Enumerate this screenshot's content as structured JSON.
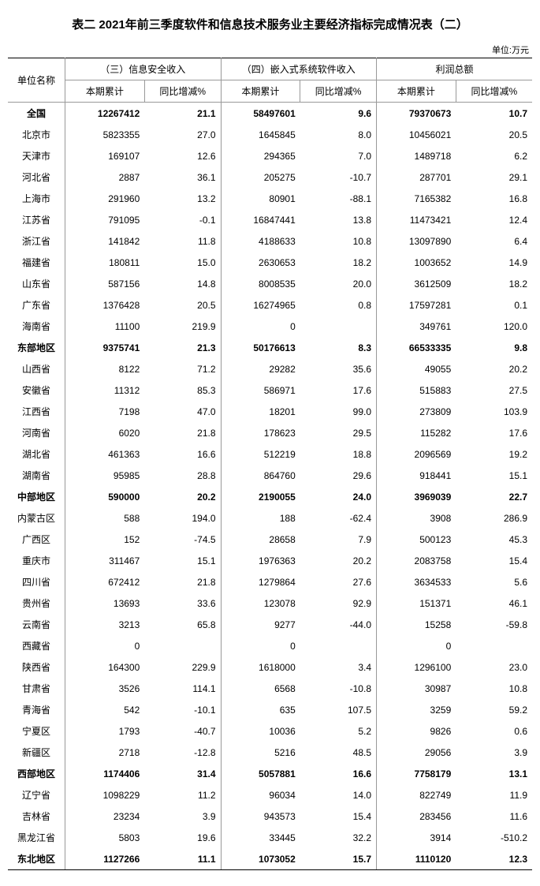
{
  "title": "表二 2021年前三季度软件和信息技术服务业主要经济指标完成情况表（二）",
  "unit_label": "单位:万元",
  "header": {
    "unit_name": "单位名称",
    "groups": [
      "（三）信息安全收入",
      "（四）嵌入式系统软件收入",
      "利润总额"
    ],
    "sub": [
      "本期累计",
      "同比增减%",
      "本期累计",
      "同比增减%",
      "本期累计",
      "同比增减%"
    ]
  },
  "rows": [
    {
      "name": "全国",
      "bold": true,
      "v": [
        "12267412",
        "21.1",
        "58497601",
        "9.6",
        "79370673",
        "10.7"
      ]
    },
    {
      "name": "北京市",
      "v": [
        "5823355",
        "27.0",
        "1645845",
        "8.0",
        "10456021",
        "20.5"
      ]
    },
    {
      "name": "天津市",
      "v": [
        "169107",
        "12.6",
        "294365",
        "7.0",
        "1489718",
        "6.2"
      ]
    },
    {
      "name": "河北省",
      "v": [
        "2887",
        "36.1",
        "205275",
        "-10.7",
        "287701",
        "29.1"
      ]
    },
    {
      "name": "上海市",
      "v": [
        "291960",
        "13.2",
        "80901",
        "-88.1",
        "7165382",
        "16.8"
      ]
    },
    {
      "name": "江苏省",
      "v": [
        "791095",
        "-0.1",
        "16847441",
        "13.8",
        "11473421",
        "12.4"
      ]
    },
    {
      "name": "浙江省",
      "v": [
        "141842",
        "11.8",
        "4188633",
        "10.8",
        "13097890",
        "6.4"
      ]
    },
    {
      "name": "福建省",
      "v": [
        "180811",
        "15.0",
        "2630653",
        "18.2",
        "1003652",
        "14.9"
      ]
    },
    {
      "name": "山东省",
      "v": [
        "587156",
        "14.8",
        "8008535",
        "20.0",
        "3612509",
        "18.2"
      ]
    },
    {
      "name": "广东省",
      "v": [
        "1376428",
        "20.5",
        "16274965",
        "0.8",
        "17597281",
        "0.1"
      ]
    },
    {
      "name": "海南省",
      "v": [
        "11100",
        "219.9",
        "0",
        "",
        "349761",
        "120.0"
      ]
    },
    {
      "name": "东部地区",
      "bold": true,
      "v": [
        "9375741",
        "21.3",
        "50176613",
        "8.3",
        "66533335",
        "9.8"
      ]
    },
    {
      "name": "山西省",
      "v": [
        "8122",
        "71.2",
        "29282",
        "35.6",
        "49055",
        "20.2"
      ]
    },
    {
      "name": "安徽省",
      "v": [
        "11312",
        "85.3",
        "586971",
        "17.6",
        "515883",
        "27.5"
      ]
    },
    {
      "name": "江西省",
      "v": [
        "7198",
        "47.0",
        "18201",
        "99.0",
        "273809",
        "103.9"
      ]
    },
    {
      "name": "河南省",
      "v": [
        "6020",
        "21.8",
        "178623",
        "29.5",
        "115282",
        "17.6"
      ]
    },
    {
      "name": "湖北省",
      "v": [
        "461363",
        "16.6",
        "512219",
        "18.8",
        "2096569",
        "19.2"
      ]
    },
    {
      "name": "湖南省",
      "v": [
        "95985",
        "28.8",
        "864760",
        "29.6",
        "918441",
        "15.1"
      ]
    },
    {
      "name": "中部地区",
      "bold": true,
      "v": [
        "590000",
        "20.2",
        "2190055",
        "24.0",
        "3969039",
        "22.7"
      ]
    },
    {
      "name": "内蒙古区",
      "v": [
        "588",
        "194.0",
        "188",
        "-62.4",
        "3908",
        "286.9"
      ]
    },
    {
      "name": "广西区",
      "v": [
        "152",
        "-74.5",
        "28658",
        "7.9",
        "500123",
        "45.3"
      ]
    },
    {
      "name": "重庆市",
      "v": [
        "311467",
        "15.1",
        "1976363",
        "20.2",
        "2083758",
        "15.4"
      ]
    },
    {
      "name": "四川省",
      "v": [
        "672412",
        "21.8",
        "1279864",
        "27.6",
        "3634533",
        "5.6"
      ]
    },
    {
      "name": "贵州省",
      "v": [
        "13693",
        "33.6",
        "123078",
        "92.9",
        "151371",
        "46.1"
      ]
    },
    {
      "name": "云南省",
      "v": [
        "3213",
        "65.8",
        "9277",
        "-44.0",
        "15258",
        "-59.8"
      ]
    },
    {
      "name": "西藏省",
      "v": [
        "0",
        "",
        "0",
        "",
        "0",
        ""
      ]
    },
    {
      "name": "陕西省",
      "v": [
        "164300",
        "229.9",
        "1618000",
        "3.4",
        "1296100",
        "23.0"
      ]
    },
    {
      "name": "甘肃省",
      "v": [
        "3526",
        "114.1",
        "6568",
        "-10.8",
        "30987",
        "10.8"
      ]
    },
    {
      "name": "青海省",
      "v": [
        "542",
        "-10.1",
        "635",
        "107.5",
        "3259",
        "59.2"
      ]
    },
    {
      "name": "宁夏区",
      "v": [
        "1793",
        "-40.7",
        "10036",
        "5.2",
        "9826",
        "0.6"
      ]
    },
    {
      "name": "新疆区",
      "v": [
        "2718",
        "-12.8",
        "5216",
        "48.5",
        "29056",
        "3.9"
      ]
    },
    {
      "name": "西部地区",
      "bold": true,
      "v": [
        "1174406",
        "31.4",
        "5057881",
        "16.6",
        "7758179",
        "13.1"
      ]
    },
    {
      "name": "辽宁省",
      "v": [
        "1098229",
        "11.2",
        "96034",
        "14.0",
        "822749",
        "11.9"
      ]
    },
    {
      "name": "吉林省",
      "v": [
        "23234",
        "3.9",
        "943573",
        "15.4",
        "283456",
        "11.6"
      ]
    },
    {
      "name": "黑龙江省",
      "v": [
        "5803",
        "19.6",
        "33445",
        "32.2",
        "3914",
        "-510.2"
      ]
    },
    {
      "name": "东北地区",
      "bold": true,
      "v": [
        "1127266",
        "11.1",
        "1073052",
        "15.7",
        "1110120",
        "12.3"
      ]
    }
  ]
}
